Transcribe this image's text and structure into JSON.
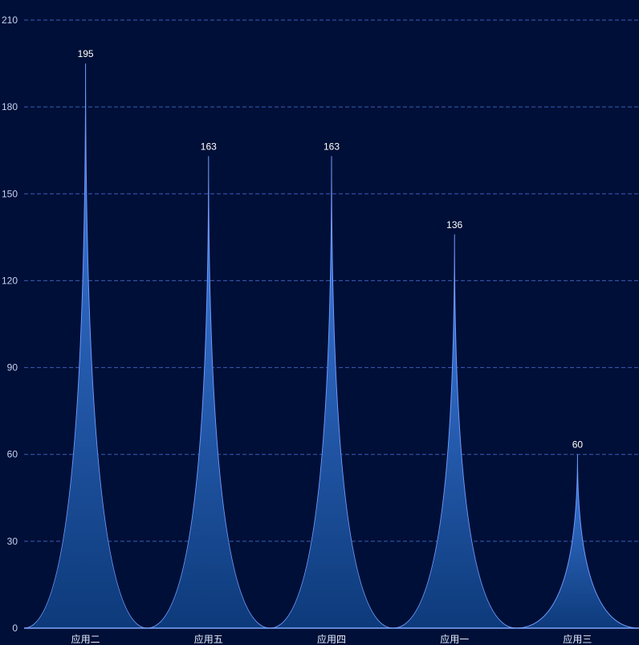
{
  "chart_data": {
    "type": "bar",
    "categories": [
      "应用二",
      "应用五",
      "应用四",
      "应用一",
      "应用三"
    ],
    "values": [
      195,
      163,
      163,
      136,
      60
    ],
    "title": "",
    "xlabel": "",
    "ylabel": "",
    "ylim": [
      0,
      210
    ],
    "yticks": [
      0,
      30,
      60,
      90,
      120,
      150,
      180,
      210
    ],
    "grid": true,
    "bar_style": "pictorial-spike",
    "colors": {
      "background": "#000f37",
      "fill_top": "#3f7fe6",
      "fill_bottom": "#0d3a7a",
      "edge": "#6f9bff",
      "grid": "#3b5db8",
      "axis": "#7fa8ff"
    }
  }
}
